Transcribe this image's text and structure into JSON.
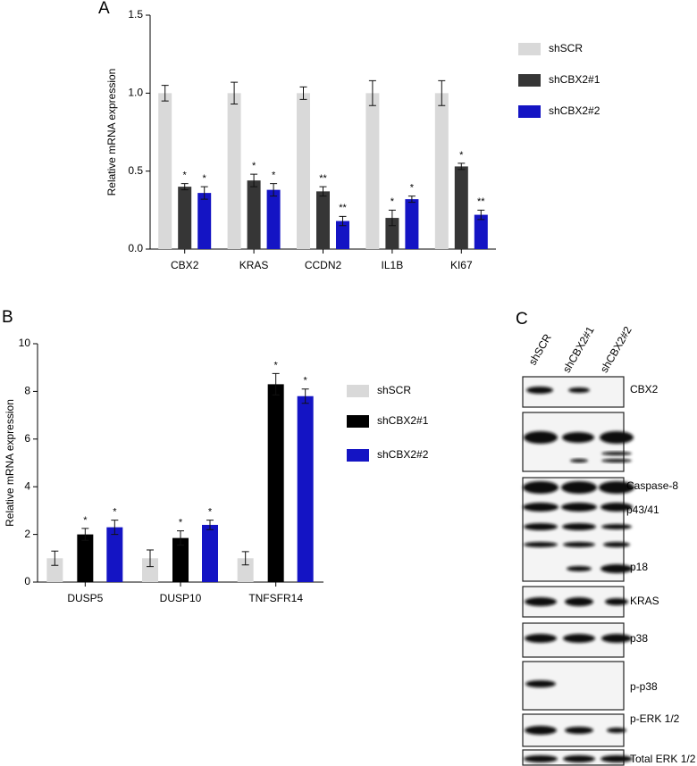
{
  "chart_data": [
    {
      "type": "bar",
      "panel_label": "A",
      "y_label": "Relative mRNA expression",
      "categories": [
        "CBX2",
        "KRAS",
        "CCDN2",
        "IL1B",
        "KI67"
      ],
      "series": [
        {
          "name": "shSCR",
          "color": "#d9d9d9",
          "values": [
            1,
            1,
            1,
            1,
            1
          ],
          "errors": [
            0.05,
            0.07,
            0.04,
            0.08,
            0.08
          ]
        },
        {
          "name": "shCBX2#1",
          "color": "#363636",
          "values": [
            0.4,
            0.44,
            0.37,
            0.2,
            0.53
          ],
          "errors": [
            0.02,
            0.04,
            0.03,
            0.05,
            0.02
          ],
          "annotations": [
            "*",
            "*",
            "**",
            "*",
            "*"
          ]
        },
        {
          "name": "shCBX2#2",
          "color": "#1414c4",
          "values": [
            0.36,
            0.38,
            0.18,
            0.32,
            0.22
          ],
          "errors": [
            0.04,
            0.04,
            0.03,
            0.02,
            0.03
          ],
          "annotations": [
            "*",
            "*",
            "**",
            "*",
            "**"
          ]
        }
      ],
      "ylim": [
        0,
        1.5
      ],
      "yticks": [
        {
          "value": 0,
          "label": "0.0"
        },
        {
          "value": 0.5,
          "label": "0.5"
        },
        {
          "value": 1,
          "label": "1.0"
        },
        {
          "value": 1.5,
          "label": "1.5"
        }
      ]
    },
    {
      "type": "bar",
      "panel_label": "B",
      "y_label": "Relative mRNA expression",
      "categories": [
        "DUSP5",
        "DUSP10",
        "TNFSFR14"
      ],
      "series": [
        {
          "name": "shSCR",
          "color": "#d9d9d9",
          "values": [
            1,
            1,
            1
          ],
          "errors": [
            0.3,
            0.35,
            0.28
          ]
        },
        {
          "name": "shCBX2#1",
          "color": "#000000",
          "values": [
            2.0,
            1.85,
            8.3
          ],
          "errors": [
            0.25,
            0.3,
            0.45
          ],
          "annotations": [
            "*",
            "*",
            "*"
          ]
        },
        {
          "name": "shCBX2#2",
          "color": "#1414c4",
          "values": [
            2.3,
            2.4,
            7.8
          ],
          "errors": [
            0.3,
            0.2,
            0.3
          ],
          "annotations": [
            "*",
            "*",
            "*"
          ]
        }
      ],
      "ylim": [
        0,
        10
      ],
      "yticks": [
        0,
        2,
        4,
        6,
        8,
        10
      ]
    }
  ],
  "blot": {
    "panel_label": "C",
    "lanes": [
      "shSCR",
      "shCBX2#1",
      "shCBX2#2"
    ],
    "labels": [
      "CBX2",
      "Caspase-8",
      "p43/41",
      "p18",
      "KRAS",
      "p38",
      "p-p38",
      "p-ERK 1/2",
      "Total ERK 1/2"
    ]
  }
}
